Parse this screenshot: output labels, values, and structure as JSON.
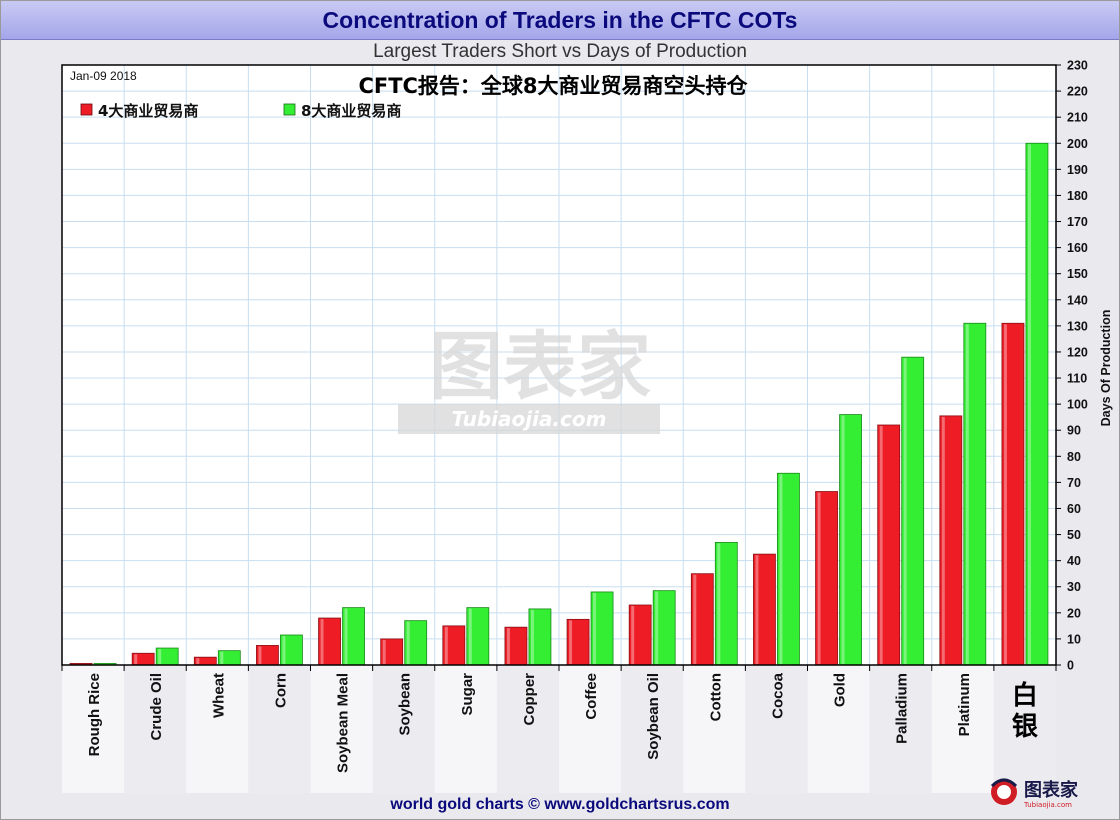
{
  "header": {
    "title": "Concentration of Traders in the CFTC COTs",
    "subtitle": "Largest Traders Short vs Days of Production",
    "date_label": "Jan-09  2018",
    "overlay_title": "CFTC报告：全球8大商业贸易商空头持仓"
  },
  "footer": {
    "credit": "world gold charts © www.goldchartsrus.com"
  },
  "watermark": {
    "main": "图表家",
    "sub": "Tubiaojia.com"
  },
  "logo": {
    "text": "图表家",
    "sub": "Tubiaojia.com"
  },
  "colors": {
    "series1": "#ee1c25",
    "series2": "#33ee33",
    "plot_bg": "#ffffff",
    "grid": "#c8def0",
    "axis": "#000000"
  },
  "chart_data": {
    "type": "bar",
    "ylabel": "Days Of Production",
    "ylim": [
      0,
      230
    ],
    "ytick_step": 10,
    "yaxis_side": "right",
    "legend_position": "top-left",
    "grid": true,
    "categories": [
      "Rough Rice",
      "Crude Oil",
      "Wheat",
      "Corn",
      "Soybean Meal",
      "Soybean",
      "Sugar",
      "Copper",
      "Coffee",
      "Soybean Oil",
      "Cotton",
      "Cocoa",
      "Gold",
      "Palladium",
      "Platinum",
      "白银"
    ],
    "series": [
      {
        "name": "4大商业贸易商",
        "values": [
          0.6,
          4.5,
          3,
          7.5,
          18,
          10,
          15,
          14.5,
          17.5,
          23,
          35,
          42.5,
          66.5,
          92,
          95.5,
          131
        ]
      },
      {
        "name": "8大商业贸易商",
        "values": [
          0.6,
          6.5,
          5.5,
          11.5,
          22,
          17,
          22,
          21.5,
          28,
          28.5,
          47,
          73.5,
          96,
          118,
          131,
          200
        ]
      }
    ]
  }
}
